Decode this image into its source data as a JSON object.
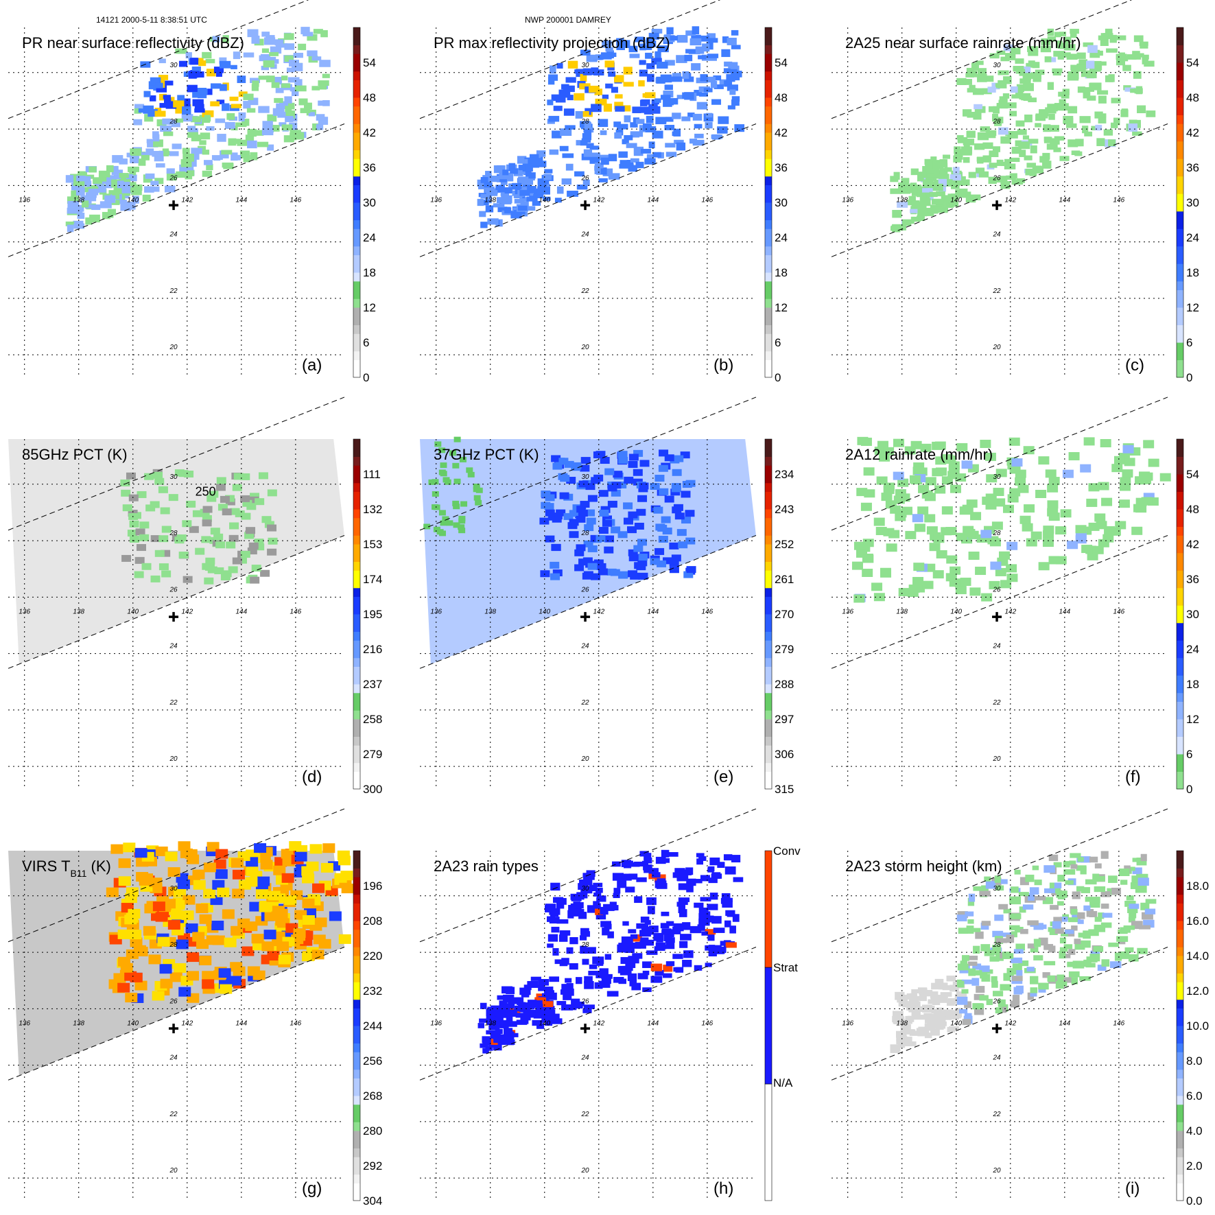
{
  "header": {
    "left": "14121 2000-5-11 8:38:51 UTC",
    "center": "NWP 200001 DAMREY"
  },
  "colors": {
    "storm_center_marker": "#000000",
    "swath_edge": "#000000",
    "gridline": "#000000"
  },
  "chart_data": [
    {
      "id": "a",
      "type": "heatmap",
      "title": "PR near surface reflectivity (dBZ)",
      "panel_label": "(a)",
      "colorbar": {
        "min": 0,
        "max": 60,
        "labels": [
          "0",
          "6",
          "12",
          "18",
          "24",
          "30",
          "36",
          "42",
          "48",
          "54"
        ]
      },
      "lon_ticks": [
        "136",
        "138",
        "140",
        "142",
        "144",
        "146"
      ],
      "lat_ticks": [
        "20",
        "22",
        "24",
        "26",
        "28",
        "30"
      ],
      "xlim": [
        135.4,
        147.8
      ],
      "ylim": [
        19.2,
        31.6
      ],
      "storm_center": [
        141.5,
        25.3
      ],
      "field": "pr"
    },
    {
      "id": "b",
      "type": "heatmap",
      "title": "PR max reflectivity projection (dBZ)",
      "panel_label": "(b)",
      "colorbar": {
        "min": 0,
        "max": 60,
        "labels": [
          "0",
          "6",
          "12",
          "18",
          "24",
          "30",
          "36",
          "42",
          "48",
          "54"
        ]
      },
      "lon_ticks": [
        "136",
        "138",
        "140",
        "142",
        "144",
        "146"
      ],
      "lat_ticks": [
        "20",
        "22",
        "24",
        "26",
        "28",
        "30"
      ],
      "xlim": [
        135.4,
        147.8
      ],
      "ylim": [
        19.2,
        31.6
      ],
      "storm_center": [
        141.5,
        25.3
      ],
      "field": "prmax"
    },
    {
      "id": "c",
      "type": "heatmap",
      "title": "2A25 near surface rainrate (mm/hr)",
      "panel_label": "(c)",
      "colorbar": {
        "min": 0,
        "max": 60,
        "labels": [
          "0",
          "6",
          "12",
          "18",
          "24",
          "30",
          "36",
          "42",
          "48",
          "54"
        ]
      },
      "lon_ticks": [
        "136",
        "138",
        "140",
        "142",
        "144",
        "146"
      ],
      "lat_ticks": [
        "20",
        "22",
        "24",
        "26",
        "28",
        "30"
      ],
      "xlim": [
        135.4,
        147.8
      ],
      "ylim": [
        19.2,
        31.6
      ],
      "storm_center": [
        141.5,
        25.3
      ],
      "field": "rain25"
    },
    {
      "id": "d",
      "type": "heatmap",
      "title": "85GHz PCT (K)",
      "panel_label": "(d)",
      "colorbar": {
        "min": 90,
        "max": 300,
        "labels": [
          "300",
          "279",
          "258",
          "237",
          "216",
          "195",
          "174",
          "153",
          "132",
          "111"
        ]
      },
      "contour_label": "250",
      "lon_ticks": [
        "136",
        "138",
        "140",
        "142",
        "144",
        "146"
      ],
      "lat_ticks": [
        "20",
        "22",
        "24",
        "26",
        "28",
        "30"
      ],
      "xlim": [
        135.4,
        147.8
      ],
      "ylim": [
        19.2,
        31.6
      ],
      "storm_center": [
        141.5,
        25.3
      ],
      "field": "pct85"
    },
    {
      "id": "e",
      "type": "heatmap",
      "title": "37GHz PCT (K)",
      "panel_label": "(e)",
      "colorbar": {
        "min": 225,
        "max": 315,
        "labels": [
          "315",
          "306",
          "297",
          "288",
          "279",
          "270",
          "261",
          "252",
          "243",
          "234"
        ]
      },
      "lon_ticks": [
        "136",
        "138",
        "140",
        "142",
        "144",
        "146"
      ],
      "lat_ticks": [
        "20",
        "22",
        "24",
        "26",
        "28",
        "30"
      ],
      "xlim": [
        135.4,
        147.8
      ],
      "ylim": [
        19.2,
        31.6
      ],
      "storm_center": [
        141.5,
        25.3
      ],
      "field": "pct37"
    },
    {
      "id": "f",
      "type": "heatmap",
      "title": "2A12 rainrate (mm/hr)",
      "panel_label": "(f)",
      "colorbar": {
        "min": 0,
        "max": 60,
        "labels": [
          "0",
          "6",
          "12",
          "18",
          "24",
          "30",
          "36",
          "42",
          "48",
          "54"
        ]
      },
      "lon_ticks": [
        "136",
        "138",
        "140",
        "142",
        "144",
        "146"
      ],
      "lat_ticks": [
        "20",
        "22",
        "24",
        "26",
        "28",
        "30"
      ],
      "xlim": [
        135.4,
        147.8
      ],
      "ylim": [
        19.2,
        31.6
      ],
      "storm_center": [
        141.5,
        25.3
      ],
      "field": "rain12"
    },
    {
      "id": "g",
      "type": "heatmap",
      "title": "VIRS T",
      "title_sub": "B11",
      "title_suffix": " (K)",
      "panel_label": "(g)",
      "colorbar": {
        "min": 184,
        "max": 304,
        "labels": [
          "304",
          "292",
          "280",
          "268",
          "256",
          "244",
          "232",
          "220",
          "208",
          "196"
        ]
      },
      "lon_ticks": [
        "136",
        "138",
        "140",
        "142",
        "144",
        "146"
      ],
      "lat_ticks": [
        "20",
        "22",
        "24",
        "26",
        "28",
        "30"
      ],
      "xlim": [
        135.4,
        147.8
      ],
      "ylim": [
        19.2,
        31.6
      ],
      "storm_center": [
        141.5,
        25.3
      ],
      "field": "virs"
    },
    {
      "id": "h",
      "type": "heatmap",
      "title": "2A23 rain types",
      "panel_label": "(h)",
      "colorbar": {
        "categories": [
          "N/A",
          "Strat",
          "Conv"
        ]
      },
      "lon_ticks": [
        "136",
        "138",
        "140",
        "142",
        "144",
        "146"
      ],
      "lat_ticks": [
        "20",
        "22",
        "24",
        "26",
        "28",
        "30"
      ],
      "xlim": [
        135.4,
        147.8
      ],
      "ylim": [
        19.2,
        31.6
      ],
      "storm_center": [
        141.5,
        25.3
      ],
      "field": "types"
    },
    {
      "id": "i",
      "type": "heatmap",
      "title": "2A23 storm height (km)",
      "panel_label": "(i)",
      "colorbar": {
        "min": 0,
        "max": 20,
        "labels": [
          "0.0",
          "2.0",
          "4.0",
          "6.0",
          "8.0",
          "10.0",
          "12.0",
          "14.0",
          "16.0",
          "18.0"
        ]
      },
      "lon_ticks": [
        "136",
        "138",
        "140",
        "142",
        "144",
        "146"
      ],
      "lat_ticks": [
        "20",
        "22",
        "24",
        "26",
        "28",
        "30"
      ],
      "xlim": [
        135.4,
        147.8
      ],
      "ylim": [
        19.2,
        31.6
      ],
      "storm_center": [
        141.5,
        25.3
      ],
      "field": "height"
    }
  ]
}
